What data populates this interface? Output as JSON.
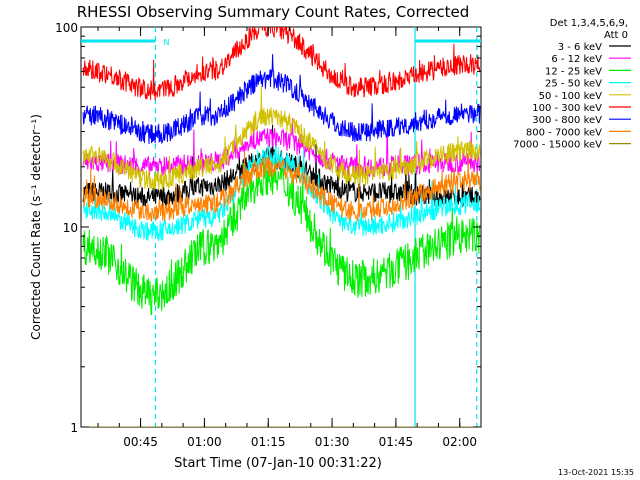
{
  "chart_data": {
    "type": "line",
    "title": "RHESSI Observing Summary Count Rates, Corrected",
    "xlabel": "Start Time (07-Jan-10 00:31:22)",
    "ylabel": "Corrected Count Rate (s⁻¹ detector⁻¹)",
    "yscale": "log",
    "ylim": [
      1,
      100
    ],
    "xlim_minutes": [
      0,
      94
    ],
    "yticks": [
      {
        "value": 1,
        "label": "1"
      },
      {
        "value": 10,
        "label": "10"
      },
      {
        "value": 100,
        "label": "100"
      }
    ],
    "xticks": [
      {
        "minute": 14,
        "label": "00:45"
      },
      {
        "minute": 29,
        "label": "01:00"
      },
      {
        "minute": 44,
        "label": "01:15"
      },
      {
        "minute": 59,
        "label": "01:30"
      },
      {
        "minute": 74,
        "label": "01:45"
      },
      {
        "minute": 89,
        "label": "02:00"
      }
    ],
    "legend_header": [
      "Det 1,3,4,5,6,9,",
      "Att 0"
    ],
    "timestamp": "13-Oct-2021 15:35",
    "night_marker": "N",
    "bars": [
      {
        "name": "night",
        "color": "#00e5ee",
        "start": 0,
        "end": 17.5,
        "label": "N"
      },
      {
        "name": "night",
        "color": "#00e5ee",
        "start": 78.5,
        "end": 94,
        "label": ""
      }
    ],
    "vlines": [
      {
        "minute": 17.5,
        "style": "dashed",
        "color": "#00e5ee"
      },
      {
        "minute": 78.5,
        "style": "solid",
        "color": "#00e5ee"
      },
      {
        "minute": 93,
        "style": "dashed",
        "color": "#00e5ee"
      }
    ],
    "series": [
      {
        "name": "3 - 6 keV",
        "color": "#000000",
        "values": [
          15,
          14,
          16,
          22,
          15,
          14
        ]
      },
      {
        "name": "6 - 12 keV",
        "color": "#ff00ff",
        "values": [
          21,
          20,
          21,
          28,
          20,
          21
        ]
      },
      {
        "name": "12 - 25 keV",
        "color": "#00ee00",
        "values": [
          8,
          4.5,
          8,
          18,
          5.5,
          9
        ]
      },
      {
        "name": "25 - 50 keV",
        "color": "#00ffff",
        "values": [
          12,
          9.5,
          11,
          23,
          10,
          13
        ]
      },
      {
        "name": "50 - 100 keV",
        "color": "#d0c000",
        "values": [
          23,
          17,
          20,
          36,
          18,
          24
        ]
      },
      {
        "name": "100 - 300 keV",
        "color": "#ff0000",
        "values": [
          61,
          48,
          60,
          100,
          50,
          65
        ]
      },
      {
        "name": "300 - 800 keV",
        "color": "#0000ff",
        "values": [
          36,
          29,
          36,
          55,
          30,
          37
        ]
      },
      {
        "name": "800 - 7000 keV",
        "color": "#ff8000",
        "values": [
          14,
          12,
          13,
          20,
          12,
          17
        ]
      },
      {
        "name": "7000 - 15000 keV",
        "color": "#9a8800",
        "values": [
          1.0,
          1.0,
          1.0,
          1.0,
          1.0,
          1.0
        ]
      }
    ],
    "series_x_minutes": [
      2,
      17.5,
      30,
      44,
      65,
      92
    ]
  }
}
